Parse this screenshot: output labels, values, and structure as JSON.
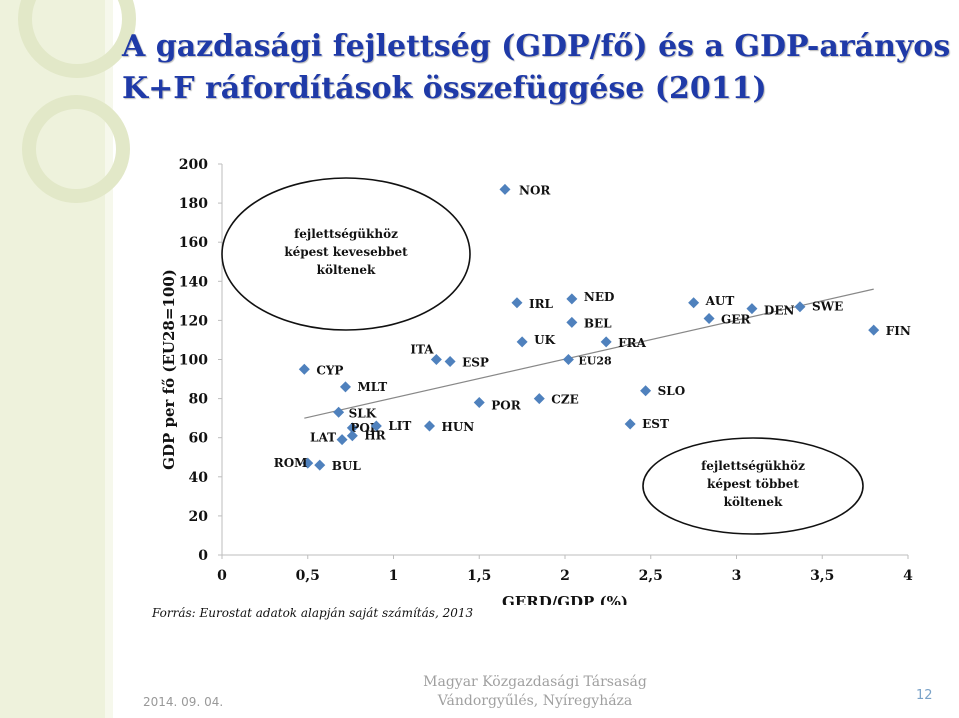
{
  "title": {
    "line1": "A gazdasági fejlettség (GDP/fő) és a GDP-arányos",
    "line2": "K+F ráfordítások összefüggése (2011)"
  },
  "chart_data": {
    "type": "scatter",
    "xlabel": "GERD/GDP (%)",
    "ylabel": "GDP per fő (EU28=100)",
    "xlim": [
      0,
      4
    ],
    "ylim": [
      0,
      200
    ],
    "xticks": [
      0,
      0.5,
      1,
      1.5,
      2,
      2.5,
      3,
      3.5,
      4
    ],
    "xtick_labels": [
      "0",
      "0,5",
      "1",
      "1,5",
      "2",
      "2,5",
      "3",
      "3,5",
      "4"
    ],
    "yticks": [
      0,
      20,
      40,
      60,
      80,
      100,
      120,
      140,
      160,
      180,
      200
    ],
    "grid": false,
    "marker_color": "#4f81bd",
    "trendline": {
      "x": [
        0.48,
        3.8
      ],
      "y": [
        70,
        136
      ],
      "color": "#888888"
    },
    "points": [
      {
        "label": "NOR",
        "x": 1.65,
        "y": 187
      },
      {
        "label": "IRL",
        "x": 1.72,
        "y": 129
      },
      {
        "label": "NED",
        "x": 2.04,
        "y": 131
      },
      {
        "label": "BEL",
        "x": 2.04,
        "y": 119
      },
      {
        "label": "UK",
        "x": 1.75,
        "y": 109
      },
      {
        "label": "FRA",
        "x": 2.24,
        "y": 109
      },
      {
        "label": "EU28",
        "x": 2.02,
        "y": 100
      },
      {
        "label": "AUT",
        "x": 2.75,
        "y": 129
      },
      {
        "label": "GER",
        "x": 2.84,
        "y": 121
      },
      {
        "label": "DEN",
        "x": 3.09,
        "y": 126
      },
      {
        "label": "SWE",
        "x": 3.37,
        "y": 127
      },
      {
        "label": "FIN",
        "x": 3.8,
        "y": 115
      },
      {
        "label": "ITA",
        "x": 1.25,
        "y": 100
      },
      {
        "label": "ESP",
        "x": 1.33,
        "y": 99
      },
      {
        "label": "CYP",
        "x": 0.48,
        "y": 95
      },
      {
        "label": "MLT",
        "x": 0.72,
        "y": 86
      },
      {
        "label": "SLK",
        "x": 0.68,
        "y": 73
      },
      {
        "label": "POR",
        "x": 1.5,
        "y": 78
      },
      {
        "label": "CZE",
        "x": 1.85,
        "y": 80
      },
      {
        "label": "SLO",
        "x": 2.47,
        "y": 84
      },
      {
        "label": "EST",
        "x": 2.38,
        "y": 67
      },
      {
        "label": "POL",
        "x": 0.76,
        "y": 65
      },
      {
        "label": "LIT",
        "x": 0.9,
        "y": 66
      },
      {
        "label": "HUN",
        "x": 1.21,
        "y": 66
      },
      {
        "label": "HR",
        "x": 0.76,
        "y": 61
      },
      {
        "label": "LAT",
        "x": 0.7,
        "y": 59
      },
      {
        "label": "ROM",
        "x": 0.5,
        "y": 47
      },
      {
        "label": "BUL",
        "x": 0.57,
        "y": 46
      }
    ],
    "annotations": [
      {
        "id": "less",
        "text": [
          "fejlettségükhöz",
          "képest kevesebbet",
          "költenek"
        ]
      },
      {
        "id": "more",
        "text": [
          "fejlettségükhöz",
          "képest többet",
          "költenek"
        ]
      }
    ]
  },
  "source": "Forrás: Eurostat adatok alapján saját számítás, 2013",
  "footer": {
    "date": "2014. 09. 04.",
    "org_line1": "Magyar Közgazdasági Társaság",
    "org_line2": "Vándorgyűlés, Nyíregyháza",
    "page": "12"
  }
}
